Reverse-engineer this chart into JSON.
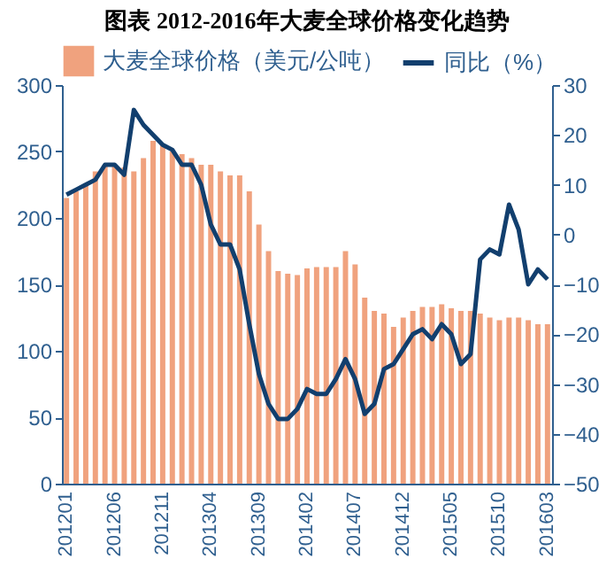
{
  "chart_data": {
    "type": "bar",
    "title": "图表    2012-2016年大麦全球价格变化趋势",
    "categories": [
      "201201",
      null,
      null,
      null,
      null,
      "201206",
      null,
      null,
      null,
      null,
      "201211",
      null,
      null,
      null,
      null,
      "201304",
      null,
      null,
      null,
      null,
      "201309",
      null,
      null,
      null,
      null,
      "201402",
      null,
      null,
      null,
      null,
      "201407",
      null,
      null,
      null,
      null,
      "201412",
      null,
      null,
      null,
      null,
      "201505",
      null,
      null,
      null,
      null,
      "201510",
      null,
      null,
      null,
      null,
      "201603"
    ],
    "series": [
      {
        "name": "大麦全球价格（美元/公吨）",
        "color": "#f0a27e",
        "values": [
          215,
          220,
          225,
          235,
          240,
          240,
          238,
          235,
          245,
          258,
          255,
          250,
          248,
          245,
          240,
          240,
          235,
          232,
          232,
          220,
          195,
          175,
          160,
          158,
          157,
          162,
          163,
          163,
          163,
          175,
          165,
          140,
          130,
          128,
          118,
          125,
          130,
          133,
          133,
          135,
          132,
          130,
          130,
          128,
          125,
          123,
          125,
          125,
          123,
          120,
          120
        ]
      },
      {
        "name": "同比（%）",
        "type": "line",
        "axis": "y2",
        "color": "#123f6e",
        "values": [
          8,
          9,
          10,
          11,
          14,
          14,
          12,
          25,
          22,
          20,
          18,
          17,
          14,
          14,
          10,
          2,
          -2,
          -2,
          -7,
          -18,
          -28,
          -34,
          -37,
          -37,
          -35,
          -31,
          -32,
          -32,
          -29,
          -25,
          -29,
          -36,
          -34,
          -27,
          -26,
          -23,
          -20,
          -19,
          -21,
          -18,
          -20,
          -26,
          -24,
          -5,
          -3,
          -4,
          6,
          1,
          -10,
          -7,
          -9
        ]
      }
    ],
    "ylim": [
      0,
      300
    ],
    "yticks": [
      0,
      50,
      100,
      150,
      200,
      250,
      300
    ],
    "y2lim": [
      -50,
      30
    ],
    "y2ticks": [
      -50,
      -40,
      -30,
      -20,
      -10,
      0,
      10,
      20,
      30
    ],
    "legend": "top",
    "grid": false,
    "marker": "none",
    "line_style": "solid"
  }
}
